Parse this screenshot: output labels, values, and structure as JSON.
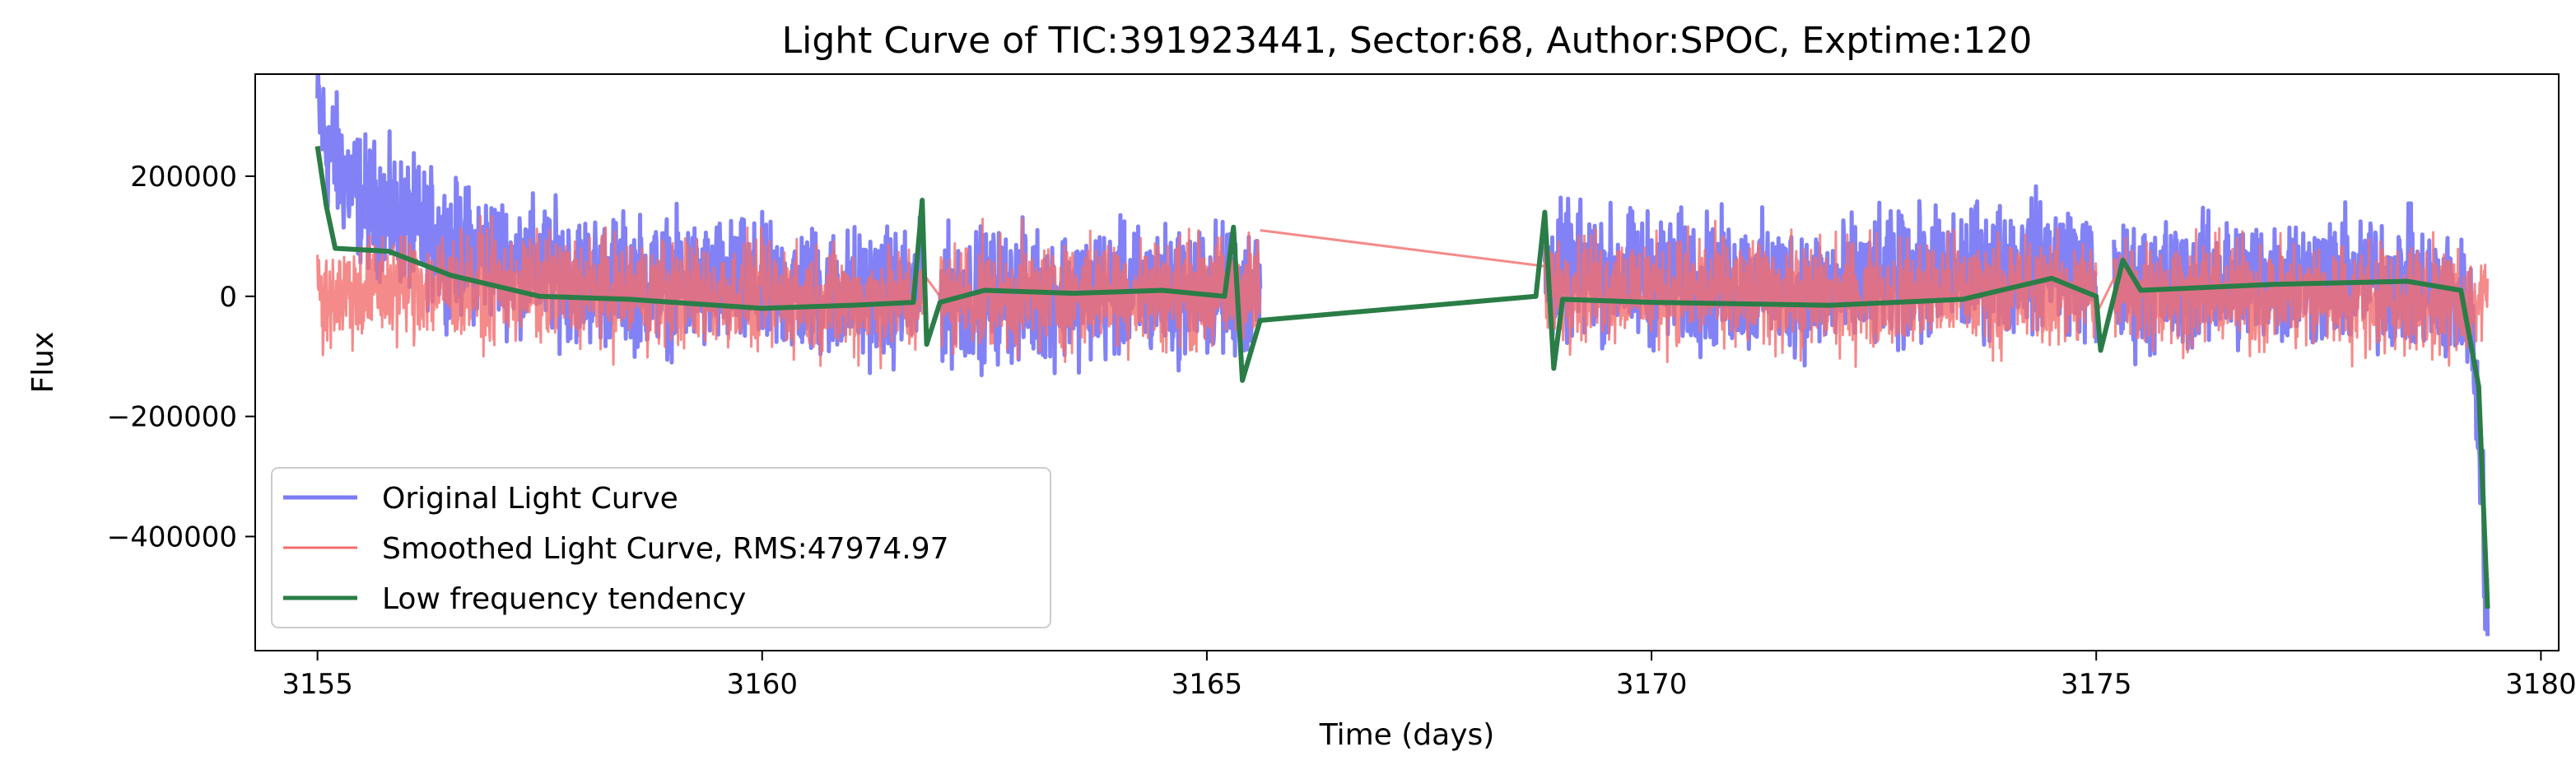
{
  "chart_data": {
    "type": "line",
    "title": "Light Curve of TIC:391923441, Sector:68, Author:SPOC, Exptime:120",
    "xlabel": "Time (days)",
    "ylabel": "Flux",
    "xlim": [
      3154.3,
      3180.2
    ],
    "ylim": [
      -590000,
      370000
    ],
    "xticks": [
      3155,
      3160,
      3165,
      3170,
      3175,
      3180
    ],
    "yticks": [
      200000,
      0,
      -200000,
      -400000
    ],
    "ytick_labels": [
      "200000",
      "0",
      "−200000",
      "−400000"
    ],
    "grid": false,
    "legend_position": "lower-left",
    "segments": [
      [
        3155.0,
        3161.8
      ],
      [
        3162.0,
        3165.6
      ],
      [
        3168.8,
        3175.0
      ],
      [
        3175.2,
        3179.4
      ]
    ],
    "series": [
      {
        "name": "Original Light Curve",
        "color": "#7b7bf5",
        "noise_amplitude": 130000,
        "points": [
          [
            3155.0,
            320000
          ],
          [
            3155.1,
            250000
          ],
          [
            3155.5,
            160000
          ],
          [
            3156.5,
            80000
          ],
          [
            3158.0,
            30000
          ],
          [
            3160.0,
            10000
          ],
          [
            3161.8,
            0
          ],
          [
            3162.0,
            0
          ],
          [
            3165.6,
            10000
          ],
          [
            3168.8,
            40000
          ],
          [
            3172.0,
            10000
          ],
          [
            3174.6,
            60000
          ],
          [
            3175.0,
            20000
          ],
          [
            3175.2,
            10000
          ],
          [
            3177.0,
            30000
          ],
          [
            3178.5,
            20000
          ],
          [
            3179.2,
            -20000
          ],
          [
            3179.3,
            -200000
          ],
          [
            3179.4,
            -540000
          ]
        ]
      },
      {
        "name": "Smoothed Light Curve, RMS:47974.97",
        "color": "#f26d6d",
        "noise_amplitude": 110000,
        "points": [
          [
            3155.0,
            0
          ],
          [
            3156.0,
            20000
          ],
          [
            3158.0,
            10000
          ],
          [
            3160.0,
            0
          ],
          [
            3161.8,
            -10000
          ],
          [
            3162.0,
            0
          ],
          [
            3165.6,
            10000
          ],
          [
            3168.8,
            20000
          ],
          [
            3172.0,
            0
          ],
          [
            3175.0,
            10000
          ],
          [
            3175.2,
            10000
          ],
          [
            3179.4,
            -10000
          ]
        ]
      },
      {
        "name": "Low frequency tendency",
        "color": "#2a7d46",
        "noise_amplitude": 0,
        "points": [
          [
            3155.0,
            250000
          ],
          [
            3155.1,
            150000
          ],
          [
            3155.2,
            80000
          ],
          [
            3155.8,
            75000
          ],
          [
            3156.5,
            35000
          ],
          [
            3157.5,
            0
          ],
          [
            3158.5,
            -5000
          ],
          [
            3160.0,
            -20000
          ],
          [
            3161.0,
            -15000
          ],
          [
            3161.7,
            -10000
          ],
          [
            3161.8,
            160000
          ],
          [
            3161.85,
            -80000
          ],
          [
            3162.0,
            -10000
          ],
          [
            3162.5,
            10000
          ],
          [
            3163.5,
            5000
          ],
          [
            3164.5,
            10000
          ],
          [
            3165.2,
            0
          ],
          [
            3165.3,
            115000
          ],
          [
            3165.4,
            -140000
          ],
          [
            3165.6,
            -40000
          ],
          [
            3168.7,
            0
          ],
          [
            3168.8,
            140000
          ],
          [
            3168.9,
            -120000
          ],
          [
            3169.0,
            -5000
          ],
          [
            3170.0,
            -10000
          ],
          [
            3172.0,
            -15000
          ],
          [
            3173.5,
            -5000
          ],
          [
            3174.5,
            30000
          ],
          [
            3175.0,
            0
          ],
          [
            3175.05,
            -90000
          ],
          [
            3175.2,
            0
          ],
          [
            3175.3,
            60000
          ],
          [
            3175.5,
            10000
          ],
          [
            3177.0,
            20000
          ],
          [
            3178.5,
            25000
          ],
          [
            3179.1,
            10000
          ],
          [
            3179.3,
            -150000
          ],
          [
            3179.4,
            -520000
          ]
        ]
      }
    ]
  }
}
